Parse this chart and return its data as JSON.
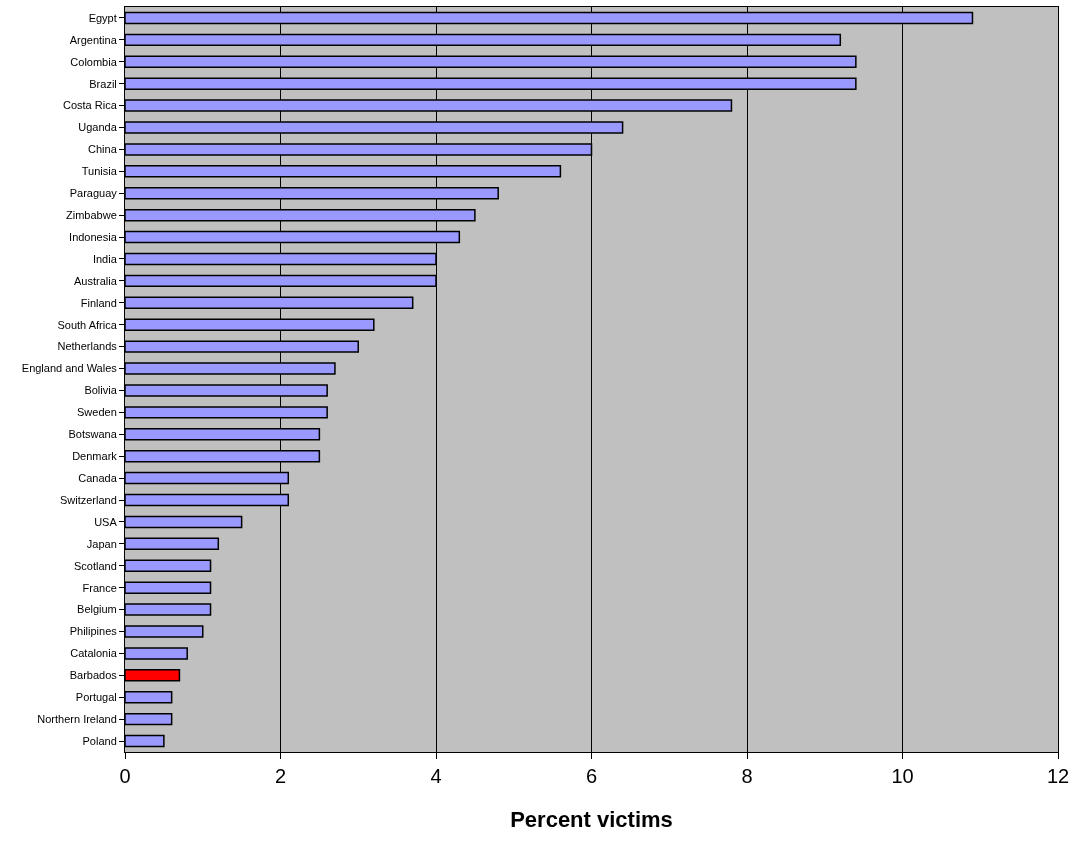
{
  "chart_data": {
    "type": "bar",
    "orientation": "horizontal",
    "xlabel": "Percent victims",
    "categories": [
      "Egypt",
      "Argentina",
      "Colombia",
      "Brazil",
      "Costa Rica",
      "Uganda",
      "China",
      "Tunisia",
      "Paraguay",
      "Zimbabwe",
      "Indonesia",
      "India",
      "Australia",
      "Finland",
      "South Africa",
      "Netherlands",
      "England and Wales",
      "Bolivia",
      "Sweden",
      "Botswana",
      "Denmark",
      "Canada",
      "Switzerland",
      "USA",
      "Japan",
      "Scotland",
      "France",
      "Belgium",
      "Philipines",
      "Catalonia",
      "Barbados",
      "Portugal",
      "Northern Ireland",
      "Poland"
    ],
    "values": [
      10.9,
      9.2,
      9.4,
      9.4,
      7.8,
      6.4,
      6.0,
      5.6,
      4.8,
      4.5,
      4.3,
      4.0,
      4.0,
      3.7,
      3.2,
      3.0,
      2.7,
      2.6,
      2.6,
      2.5,
      2.5,
      2.1,
      2.1,
      1.5,
      1.2,
      1.1,
      1.1,
      1.1,
      1.0,
      0.8,
      0.7,
      0.6,
      0.6,
      0.5
    ],
    "colors": [
      "#9999ff",
      "#9999ff",
      "#9999ff",
      "#9999ff",
      "#9999ff",
      "#9999ff",
      "#9999ff",
      "#9999ff",
      "#9999ff",
      "#9999ff",
      "#9999ff",
      "#9999ff",
      "#9999ff",
      "#9999ff",
      "#9999ff",
      "#9999ff",
      "#9999ff",
      "#9999ff",
      "#9999ff",
      "#9999ff",
      "#9999ff",
      "#9999ff",
      "#9999ff",
      "#9999ff",
      "#9999ff",
      "#9999ff",
      "#9999ff",
      "#9999ff",
      "#9999ff",
      "#9999ff",
      "#ff0000",
      "#9999ff",
      "#9999ff",
      "#9999ff"
    ],
    "xlim": [
      0,
      12
    ],
    "xticks": [
      0,
      2,
      4,
      6,
      8,
      10,
      12
    ],
    "grid": "x",
    "legend": false
  }
}
